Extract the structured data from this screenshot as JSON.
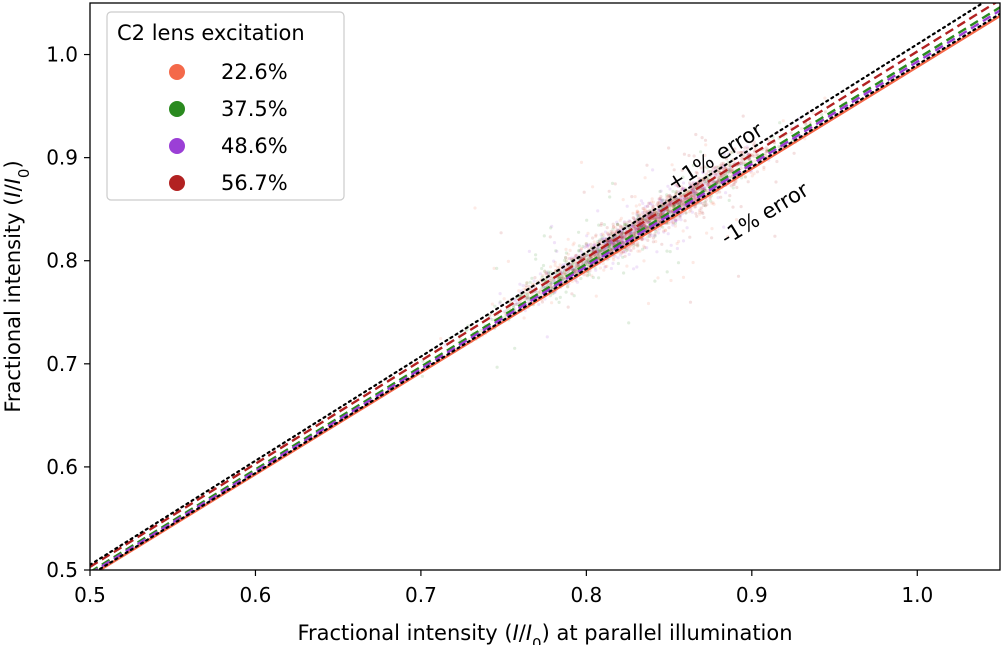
{
  "chart_data": {
    "type": "scatter",
    "title": "",
    "xlabel": {
      "pre": "Fractional intensity (",
      "italic1": "I",
      "slash": "/",
      "italic2": "I",
      "sub": "0",
      "post": ") at parallel illumination"
    },
    "ylabel": {
      "pre": "Fractional intensity (",
      "italic1": "I",
      "slash": "/",
      "italic2": "I",
      "sub": "0",
      "post": ")"
    },
    "xlim": [
      0.5,
      1.05
    ],
    "ylim": [
      0.5,
      1.05
    ],
    "xticks": [
      0.5,
      0.6,
      0.7,
      0.8,
      0.9,
      1.0
    ],
    "yticks": [
      0.5,
      0.6,
      0.7,
      0.8,
      0.9,
      1.0
    ],
    "xtick_labels": [
      "0.5",
      "0.6",
      "0.7",
      "0.8",
      "0.9",
      "1.0"
    ],
    "ytick_labels": [
      "0.5",
      "0.6",
      "0.7",
      "0.8",
      "0.9",
      "1.0"
    ],
    "legend": {
      "title": "C2 lens excitation",
      "placement": "top-left"
    },
    "series": [
      {
        "name": "22.6%",
        "color": "#f4694a",
        "fit_slope": 0.988,
        "fit_intercept": 0.0,
        "line_style": "solid",
        "cloud": {
          "center": [
            0.83,
            0.83
          ],
          "spread_along": 0.055,
          "spread_across": 0.006
        }
      },
      {
        "name": "37.5%",
        "color": "#2a8a1f",
        "fit_slope": 0.996,
        "fit_intercept": 0.0,
        "line_style": "dashed",
        "cloud": {
          "center": [
            0.82,
            0.82
          ],
          "spread_along": 0.06,
          "spread_across": 0.005
        }
      },
      {
        "name": "48.6%",
        "color": "#9b3fd6",
        "fit_slope": 0.993,
        "fit_intercept": 0.0,
        "line_style": "dashed",
        "cloud": {
          "center": [
            0.83,
            0.83
          ],
          "spread_along": 0.05,
          "spread_across": 0.005
        }
      },
      {
        "name": "56.7%",
        "color": "#b22222",
        "fit_slope": 1.0,
        "fit_intercept": 0.003,
        "line_style": "dashed",
        "cloud": {
          "center": [
            0.85,
            0.85
          ],
          "spread_along": 0.045,
          "spread_across": 0.006
        }
      }
    ],
    "reference_lines": [
      {
        "label": "+1% error",
        "slope": 1.01,
        "style": "dotted",
        "color": "#000000"
      },
      {
        "label": "-1% error",
        "slope": 0.99,
        "style": "dotted",
        "color": "#000000"
      }
    ],
    "annotations": [
      {
        "text": "+1% error",
        "x": 0.88,
        "y": 0.895,
        "rotation_slope": 1.01
      },
      {
        "text": "-1% error",
        "x": 0.91,
        "y": 0.84,
        "rotation_slope": 0.99
      }
    ],
    "grid": false
  }
}
